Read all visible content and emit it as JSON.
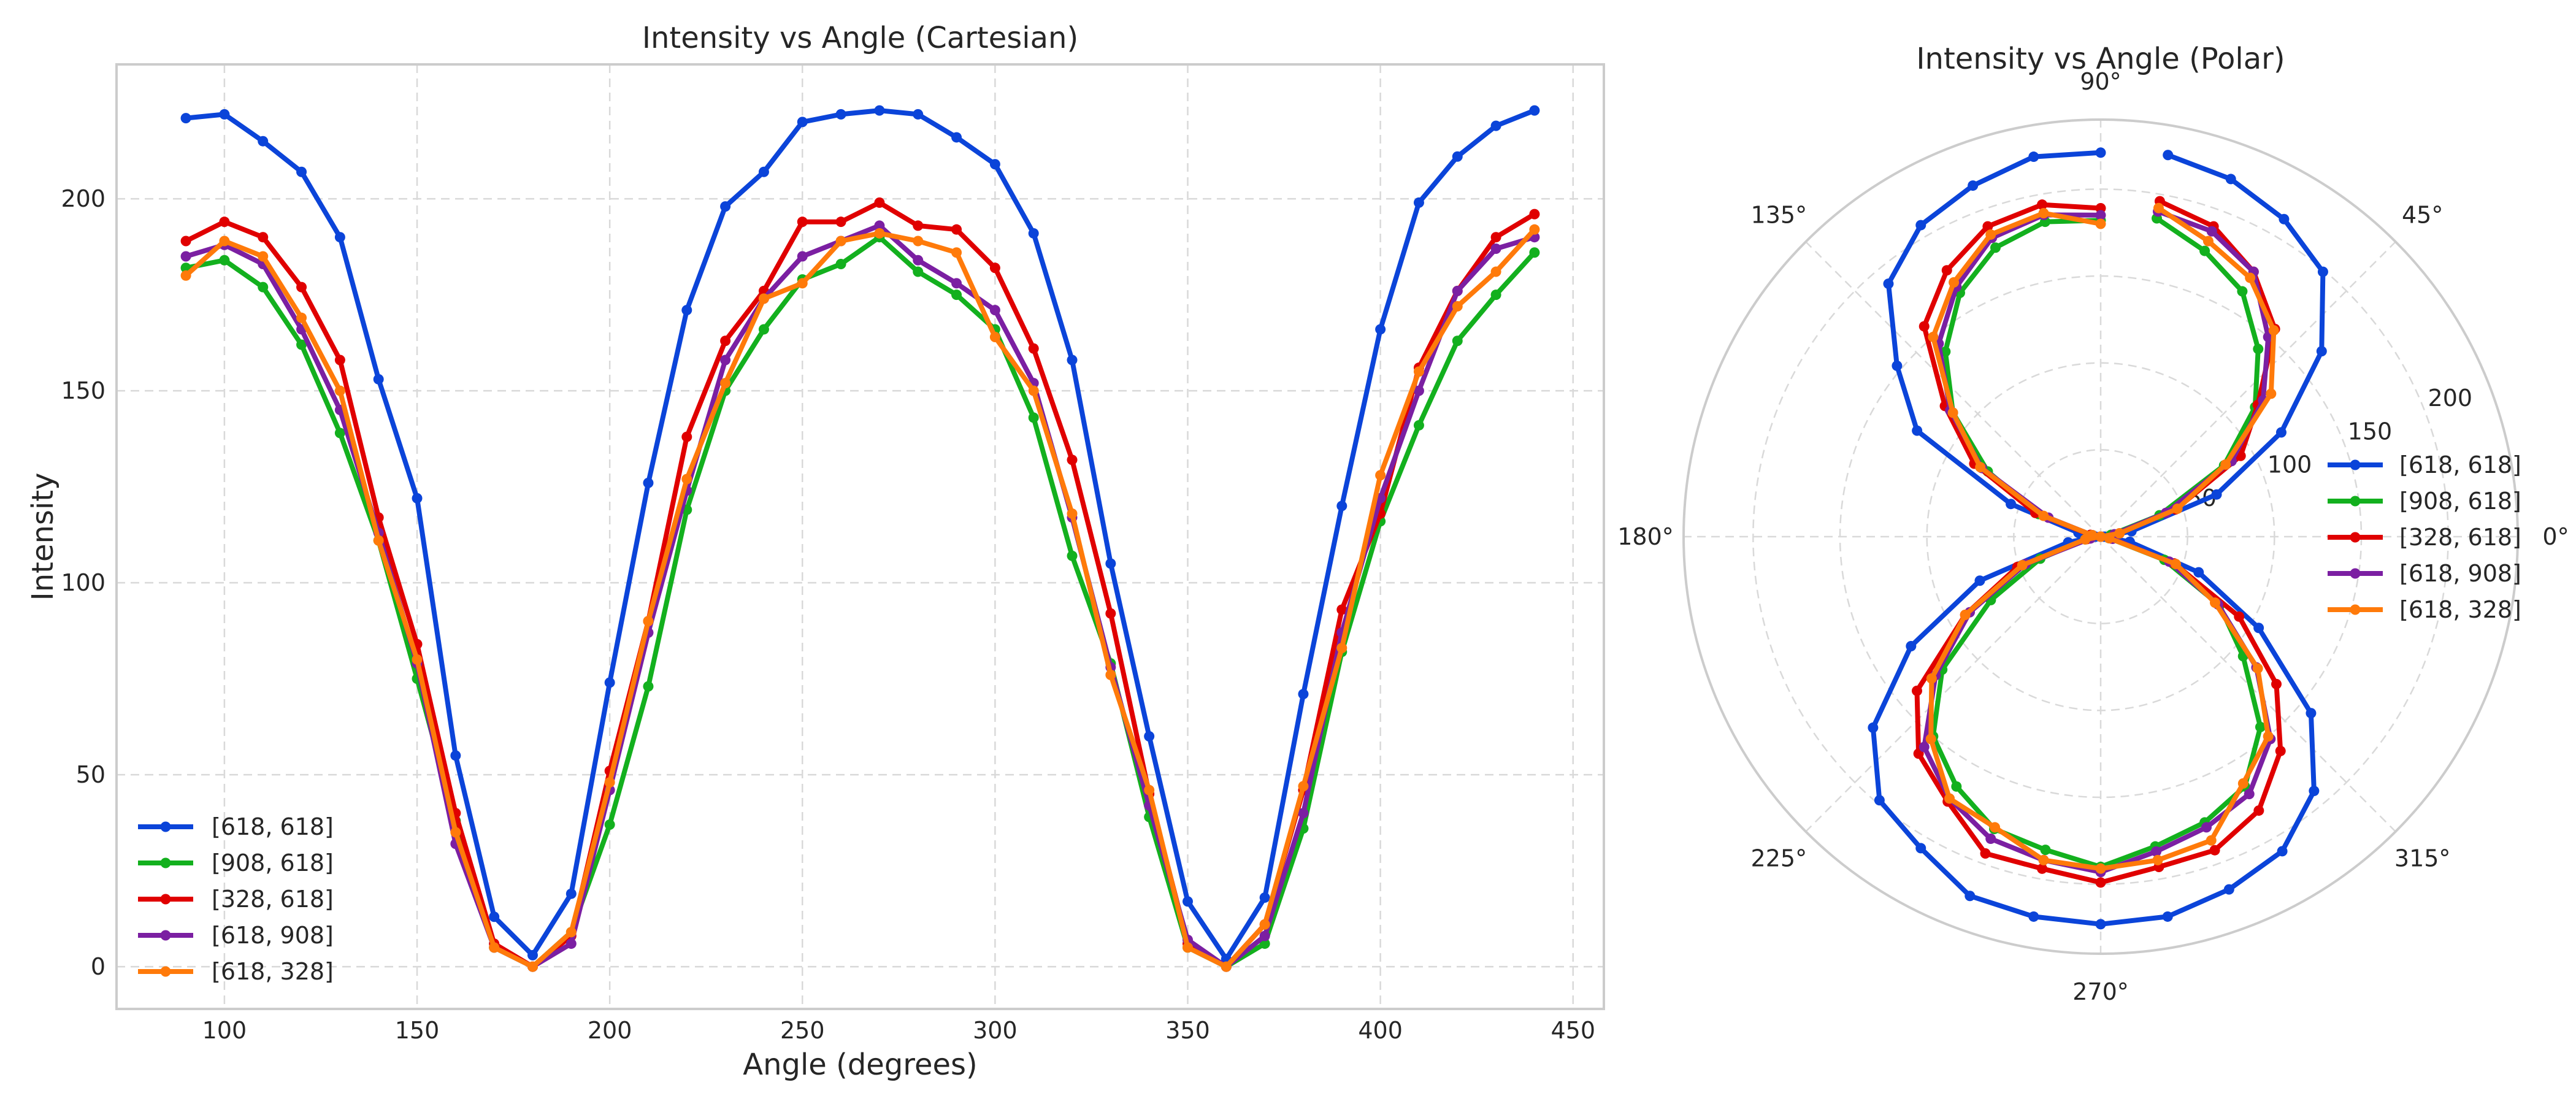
{
  "chart_data": [
    {
      "type": "line",
      "title": "Intensity vs Angle (Cartesian)",
      "xlabel": "Angle (degrees)",
      "ylabel": "Intensity",
      "xlim": [
        72,
        458
      ],
      "ylim": [
        -11,
        235
      ],
      "xticks": [
        100,
        150,
        200,
        250,
        300,
        350,
        400,
        450
      ],
      "yticks": [
        0,
        50,
        100,
        150,
        200
      ],
      "grid": true,
      "legend_position": "lower-left",
      "x": [
        90,
        100,
        110,
        120,
        130,
        140,
        150,
        160,
        170,
        180,
        190,
        200,
        210,
        220,
        230,
        240,
        250,
        260,
        270,
        280,
        290,
        300,
        310,
        320,
        330,
        340,
        350,
        360,
        370,
        380,
        390,
        400,
        410,
        420,
        430,
        440
      ],
      "series": [
        {
          "name": "[618, 618]",
          "color": "#0b44d9",
          "values": [
            221,
            222,
            215,
            207,
            190,
            153,
            122,
            55,
            13,
            3,
            19,
            74,
            126,
            171,
            198,
            207,
            220,
            222,
            223,
            222,
            216,
            209,
            191,
            158,
            105,
            60,
            17,
            2,
            18,
            71,
            120,
            166,
            199,
            211,
            219,
            223
          ]
        },
        {
          "name": "[908, 618]",
          "color": "#13b01e",
          "values": [
            182,
            184,
            177,
            162,
            139,
            111,
            75,
            38,
            5,
            0,
            9,
            37,
            73,
            119,
            150,
            166,
            179,
            183,
            190,
            181,
            175,
            166,
            143,
            107,
            79,
            39,
            5,
            0,
            6,
            36,
            82,
            116,
            141,
            163,
            175,
            186
          ]
        },
        {
          "name": "[328, 618]",
          "color": "#e00000",
          "values": [
            189,
            194,
            190,
            177,
            158,
            117,
            84,
            40,
            6,
            0,
            8,
            51,
            90,
            138,
            163,
            176,
            194,
            194,
            199,
            193,
            192,
            182,
            161,
            132,
            92,
            45,
            6,
            0,
            11,
            46,
            93,
            118,
            156,
            176,
            190,
            196
          ]
        },
        {
          "name": "[618, 908]",
          "color": "#7b1fa2",
          "values": [
            185,
            188,
            183,
            166,
            145,
            113,
            79,
            32,
            5,
            0,
            6,
            46,
            87,
            124,
            158,
            174,
            185,
            189,
            193,
            184,
            178,
            171,
            152,
            117,
            78,
            42,
            7,
            0,
            8,
            40,
            87,
            122,
            150,
            176,
            187,
            190
          ]
        },
        {
          "name": "[618, 328]",
          "color": "#ff7a0a",
          "values": [
            180,
            189,
            185,
            169,
            150,
            111,
            80,
            35,
            5,
            0,
            9,
            48,
            90,
            127,
            152,
            174,
            178,
            189,
            191,
            189,
            186,
            164,
            150,
            118,
            76,
            46,
            5,
            0,
            11,
            47,
            83,
            128,
            155,
            172,
            181,
            192
          ]
        }
      ]
    },
    {
      "type": "polar",
      "title": "Intensity vs Angle (Polar)",
      "rlim": [
        0,
        240
      ],
      "rticks": [
        50,
        100,
        150,
        200
      ],
      "theta_ticks": [
        "0°",
        "45°",
        "90°",
        "135°",
        "180°",
        "225°",
        "270°",
        "315°"
      ],
      "grid": true,
      "legend_position": "right",
      "theta": "same as Cartesian x (degrees)",
      "series": [
        {
          "name": "[618, 618]"
        },
        {
          "name": "[908, 618]"
        },
        {
          "name": "[328, 618]"
        },
        {
          "name": "[618, 908]"
        },
        {
          "name": "[618, 328]"
        }
      ]
    }
  ]
}
